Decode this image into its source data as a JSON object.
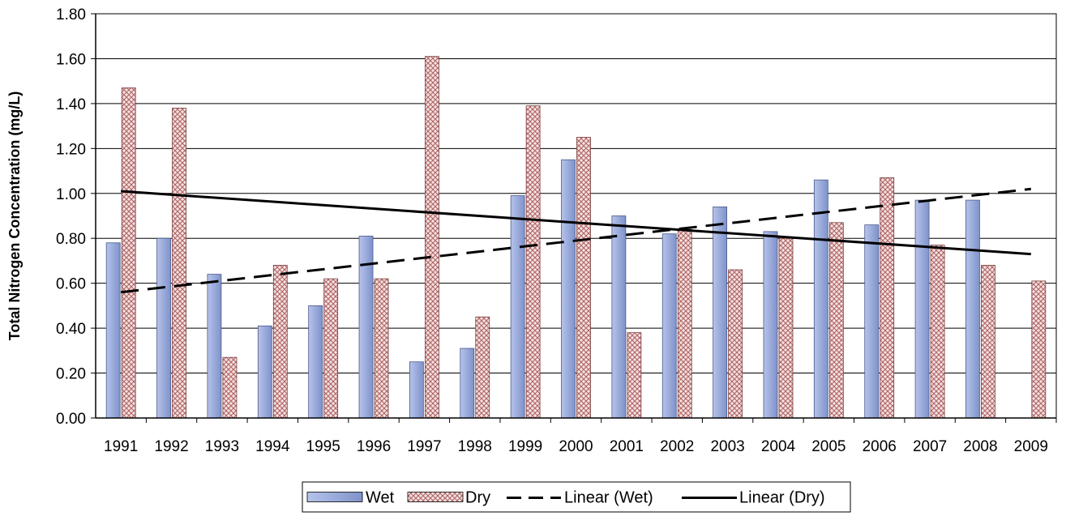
{
  "chart_data": {
    "type": "bar",
    "title": "",
    "xlabel": "",
    "ylabel": "Total Nitrogen Concentration (mg/L)",
    "ylim": [
      0,
      1.8
    ],
    "yticks": [
      "0.00",
      "0.20",
      "0.40",
      "0.60",
      "0.80",
      "1.00",
      "1.20",
      "1.40",
      "1.60",
      "1.80"
    ],
    "grid": true,
    "legend_position": "bottom",
    "categories": [
      "1991",
      "1992",
      "1993",
      "1994",
      "1995",
      "1996",
      "1997",
      "1998",
      "1999",
      "2000",
      "2001",
      "2002",
      "2003",
      "2004",
      "2005",
      "2006",
      "2007",
      "2008",
      "2009"
    ],
    "series": [
      {
        "name": "Wet",
        "color": "#9aabdb",
        "values": [
          0.78,
          0.8,
          0.64,
          0.41,
          0.5,
          0.81,
          0.25,
          0.31,
          0.99,
          1.15,
          0.9,
          0.82,
          0.94,
          0.83,
          1.06,
          0.86,
          0.97,
          0.97,
          null
        ]
      },
      {
        "name": "Dry",
        "color": "#e8c4c4",
        "pattern": "crosshatch",
        "values": [
          1.47,
          1.38,
          0.27,
          0.68,
          0.62,
          0.62,
          1.61,
          0.45,
          1.39,
          1.25,
          0.38,
          0.84,
          0.66,
          0.8,
          0.87,
          1.07,
          0.77,
          0.68,
          0.61
        ]
      }
    ],
    "trendlines": [
      {
        "name": "Linear (Wet)",
        "style": "dashed",
        "start": 0.56,
        "end": 1.02
      },
      {
        "name": "Linear (Dry)",
        "style": "solid",
        "start": 1.01,
        "end": 0.73
      }
    ],
    "legend": [
      "Wet",
      "Dry",
      "Linear (Wet)",
      "Linear (Dry)"
    ]
  }
}
